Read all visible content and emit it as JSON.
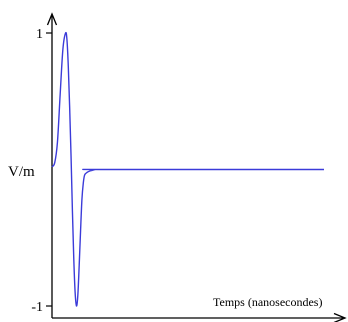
{
  "chart_data": {
    "type": "line",
    "title": "",
    "xlabel": "Temps (nanosecondes)",
    "ylabel": "V/m",
    "ytick_labels": [
      "1",
      "-1"
    ],
    "yticks": [
      1,
      -1
    ],
    "ylim": [
      -1,
      1
    ],
    "xlim": [
      0,
      1
    ],
    "x": [
      0.0,
      0.01,
      0.02,
      0.03,
      0.04,
      0.05,
      0.055,
      0.06,
      0.065,
      0.07,
      0.075,
      0.08,
      0.085,
      0.09,
      0.095,
      0.1,
      0.105,
      0.11,
      0.115,
      0.12,
      0.13,
      0.14,
      0.15,
      0.16,
      0.18,
      1.0
    ],
    "series": [
      {
        "values": [
          0.02,
          0.05,
          0.2,
          0.55,
          0.88,
          1.0,
          0.95,
          0.75,
          0.45,
          0.1,
          -0.3,
          -0.65,
          -0.9,
          -1.0,
          -0.92,
          -0.7,
          -0.45,
          -0.22,
          -0.1,
          -0.04,
          -0.02,
          -0.01,
          -0.005,
          0.0,
          0.0,
          0.0
        ],
        "color": "#3b3bd9"
      }
    ],
    "grid": false,
    "legend": "none"
  }
}
